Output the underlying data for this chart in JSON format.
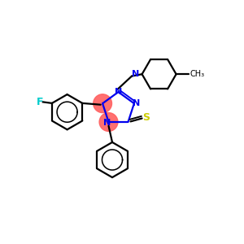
{
  "bg_color": "#ffffff",
  "bond_color": "#000000",
  "N_color": "#0000ee",
  "F_color": "#00cccc",
  "S_color": "#cccc00",
  "highlight_color": "#ff6060",
  "figsize": [
    3.0,
    3.0
  ],
  "dpi": 100,
  "xlim": [
    0,
    10
  ],
  "ylim": [
    0,
    10
  ]
}
